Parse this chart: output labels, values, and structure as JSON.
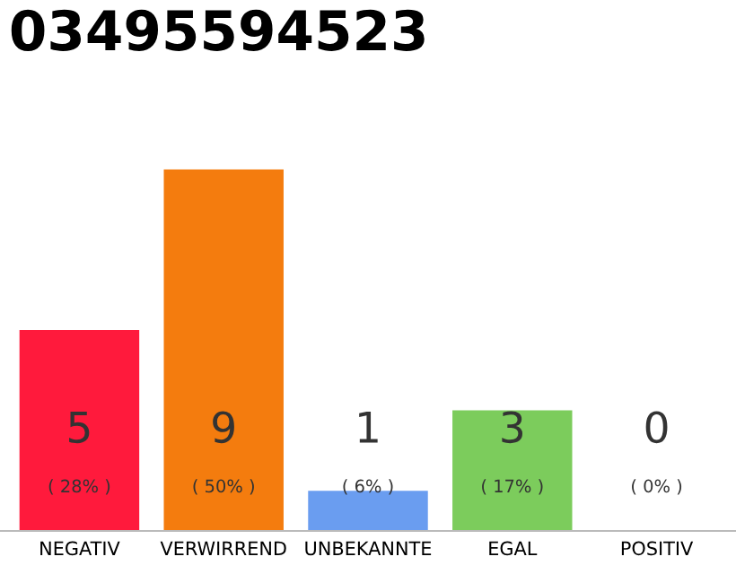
{
  "chart_data": {
    "type": "bar",
    "title": "03495594523",
    "categories": [
      "NEGATIV",
      "VERWIRREND",
      "UNBEKANNTE",
      "EGAL",
      "POSITIV"
    ],
    "values": [
      5,
      9,
      1,
      3,
      0
    ],
    "colors": [
      "#ff1a3c",
      "#f47c0e",
      "#6a9df0",
      "#7ccc5c",
      "#e0e0e0"
    ],
    "value_labels": [
      "5\n( 28% )",
      "9\n( 50% )",
      "1\n( 6% )",
      "3\n( 17% )",
      "0\n( 0% )"
    ],
    "grid": false,
    "legend": false
  }
}
